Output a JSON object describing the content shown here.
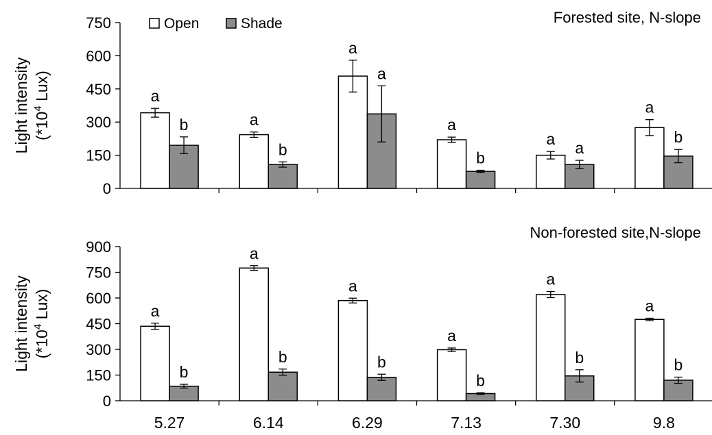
{
  "chart_data": [
    {
      "type": "bar",
      "title": "Forested site, N-slope",
      "ylabel": "Light intensity",
      "ylabel_line2": "(*10",
      "ylabel_sup": "4",
      "ylabel_unit": " Lux)",
      "ylim": [
        0,
        750
      ],
      "yticks": [
        "0",
        "150",
        "300",
        "450",
        "600",
        "750"
      ],
      "categories": [
        "5.27",
        "6.14",
        "6.29",
        "7.13",
        "7.30",
        "9.8"
      ],
      "legend_position": "top-left",
      "grid": false,
      "series": [
        {
          "name": "Open",
          "color": "#ffffff",
          "values": [
            342,
            243,
            508,
            220,
            150,
            275
          ],
          "errors": [
            20,
            12,
            72,
            12,
            17,
            36
          ],
          "labels": [
            "a",
            "a",
            "a",
            "a",
            "a",
            "a"
          ]
        },
        {
          "name": "Shade",
          "color": "#8c8c8c",
          "values": [
            195,
            108,
            337,
            77,
            108,
            146
          ],
          "errors": [
            38,
            12,
            127,
            5,
            19,
            30
          ],
          "labels": [
            "b",
            "b",
            "a",
            "b",
            "a",
            "b"
          ]
        }
      ]
    },
    {
      "type": "bar",
      "title": "Non-forested site,N-slope",
      "ylabel": "Light intensity",
      "ylabel_line2": "(*10",
      "ylabel_sup": "4",
      "ylabel_unit": " Lux)",
      "ylim": [
        0,
        900
      ],
      "yticks": [
        "0",
        "150",
        "300",
        "450",
        "600",
        "750",
        "900"
      ],
      "categories": [
        "5.27",
        "6.14",
        "6.29",
        "7.13",
        "7.30",
        "9.8"
      ],
      "grid": false,
      "series": [
        {
          "name": "Open",
          "color": "#ffffff",
          "values": [
            435,
            775,
            585,
            298,
            620,
            475
          ],
          "errors": [
            18,
            14,
            14,
            10,
            18,
            7
          ],
          "labels": [
            "a",
            "a",
            "a",
            "a",
            "a",
            "a"
          ]
        },
        {
          "name": "Shade",
          "color": "#8c8c8c",
          "values": [
            85,
            167,
            137,
            42,
            145,
            120
          ],
          "errors": [
            11,
            18,
            18,
            5,
            36,
            18
          ],
          "labels": [
            "b",
            "b",
            "b",
            "b",
            "b",
            "b"
          ]
        }
      ]
    }
  ]
}
